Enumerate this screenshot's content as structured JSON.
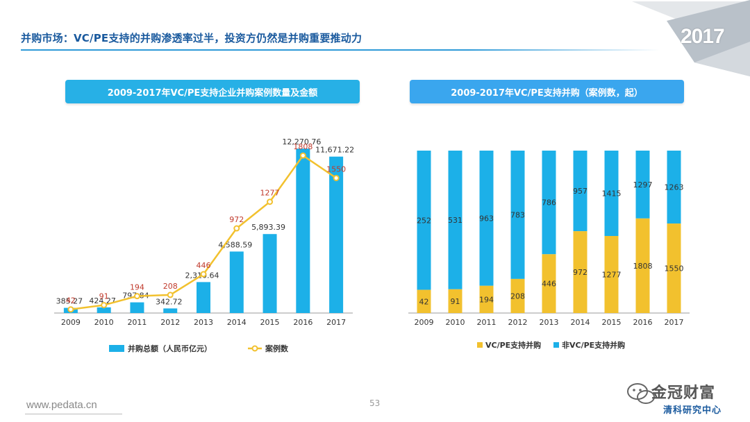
{
  "page": {
    "title": "并购市场：VC/PE支持的并购渗透率过半，投资方仍然是并购重要推动力",
    "year_badge": "2017",
    "footer_url": "www.pedata.cn",
    "page_number": "53",
    "watermark_line1": "金冠财富",
    "watermark_line2": "清科研究中心"
  },
  "colors": {
    "accent": "#27b0e6",
    "bar_blue": "#1cb0e8",
    "line_gold": "#f2c12e",
    "label_red": "#c0392b",
    "title_blue": "#1a5a9e"
  },
  "chart_data": [
    {
      "type": "bar",
      "title": "2009-2017年VC/PE支持企业并购案例数量及金额",
      "categories": [
        "2009",
        "2010",
        "2011",
        "2012",
        "2013",
        "2014",
        "2015",
        "2016",
        "2017"
      ],
      "series": [
        {
          "name": "并购总额（人民币亿元）",
          "type": "bar",
          "values": [
            385.27,
            424.27,
            797.84,
            342.72,
            2310.64,
            4588.59,
            5893.39,
            12270.76,
            11671.22
          ],
          "labels": [
            "385.27",
            "424.27",
            "797.84",
            "342.72",
            "2,310.64",
            "4,588.59",
            "5,893.39",
            "12,270.76",
            "11,671.22"
          ]
        },
        {
          "name": "案例数",
          "type": "line",
          "values": [
            42,
            91,
            194,
            208,
            446,
            972,
            1277,
            1808,
            1550
          ]
        }
      ],
      "ylim": [
        0,
        13000
      ],
      "ylim_secondary": [
        0,
        2000
      ],
      "legend": "bottom"
    },
    {
      "type": "bar",
      "stacked": true,
      "percent": true,
      "title": "2009-2017年VC/PE支持并购（案例数，起）",
      "categories": [
        "2009",
        "2010",
        "2011",
        "2012",
        "2013",
        "2014",
        "2015",
        "2016",
        "2017"
      ],
      "series": [
        {
          "name": "VC/PE支持并购",
          "values": [
            42,
            91,
            194,
            208,
            446,
            972,
            1277,
            1808,
            1550
          ]
        },
        {
          "name": "非VC/PE支持并购",
          "values": [
            252,
            531,
            963,
            783,
            786,
            957,
            1415,
            1297,
            1263
          ]
        }
      ],
      "legend": "bottom"
    }
  ]
}
